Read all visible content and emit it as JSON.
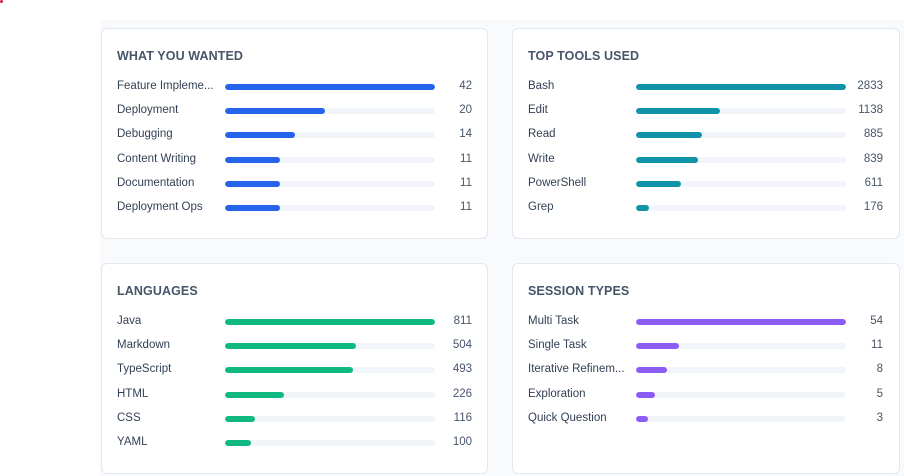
{
  "cards": [
    {
      "id": "what-you-wanted",
      "title": "WHAT YOU WANTED",
      "color": "#2563eb",
      "max": 42,
      "rows": [
        {
          "label": "Feature Impleme...",
          "value": 42
        },
        {
          "label": "Deployment",
          "value": 20
        },
        {
          "label": "Debugging",
          "value": 14
        },
        {
          "label": "Content Writing",
          "value": 11
        },
        {
          "label": "Documentation",
          "value": 11
        },
        {
          "label": "Deployment Ops",
          "value": 11
        }
      ]
    },
    {
      "id": "top-tools-used",
      "title": "TOP TOOLS USED",
      "color": "#0e93a8",
      "max": 2833,
      "rows": [
        {
          "label": "Bash",
          "value": 2833
        },
        {
          "label": "Edit",
          "value": 1138
        },
        {
          "label": "Read",
          "value": 885
        },
        {
          "label": "Write",
          "value": 839
        },
        {
          "label": "PowerShell",
          "value": 611
        },
        {
          "label": "Grep",
          "value": 176
        }
      ]
    },
    {
      "id": "languages",
      "title": "LANGUAGES",
      "color": "#10b981",
      "max": 811,
      "rows": [
        {
          "label": "Java",
          "value": 811
        },
        {
          "label": "Markdown",
          "value": 504
        },
        {
          "label": "TypeScript",
          "value": 493
        },
        {
          "label": "HTML",
          "value": 226
        },
        {
          "label": "CSS",
          "value": 116
        },
        {
          "label": "YAML",
          "value": 100
        }
      ]
    },
    {
      "id": "session-types",
      "title": "SESSION TYPES",
      "color": "#8b5cf6",
      "max": 54,
      "rows": [
        {
          "label": "Multi Task",
          "value": 54
        },
        {
          "label": "Single Task",
          "value": 11
        },
        {
          "label": "Iterative Refinem...",
          "value": 8
        },
        {
          "label": "Exploration",
          "value": 5
        },
        {
          "label": "Quick Question",
          "value": 3
        }
      ]
    }
  ]
}
